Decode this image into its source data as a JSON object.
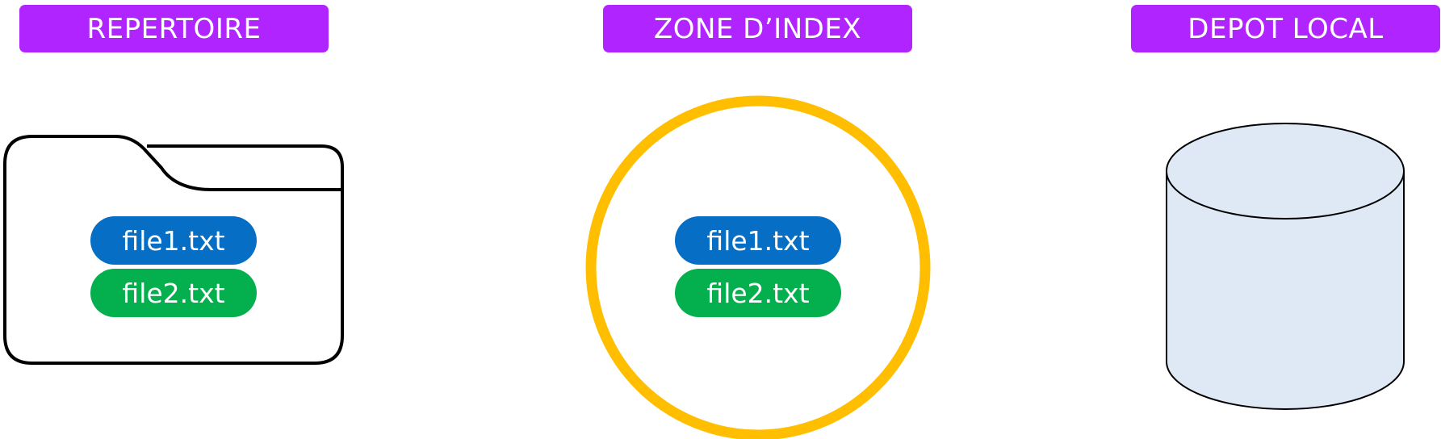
{
  "colors": {
    "label_bg": "#b025ff",
    "file1_bg": "#066ec5",
    "file2_bg": "#04af4d",
    "index_ring": "#ffbe00",
    "repo_fill": "#dee9f5",
    "outline": "#000000"
  },
  "sections": {
    "repertoire": {
      "label": "REPERTOIRE",
      "icon": "folder-icon",
      "files": [
        "file1.txt",
        "file2.txt"
      ]
    },
    "index": {
      "label": "ZONE D’INDEX",
      "icon": "circle-icon",
      "files": [
        "file1.txt",
        "file2.txt"
      ]
    },
    "depot": {
      "label": "DEPOT LOCAL",
      "icon": "database-cylinder-icon",
      "files": []
    }
  }
}
